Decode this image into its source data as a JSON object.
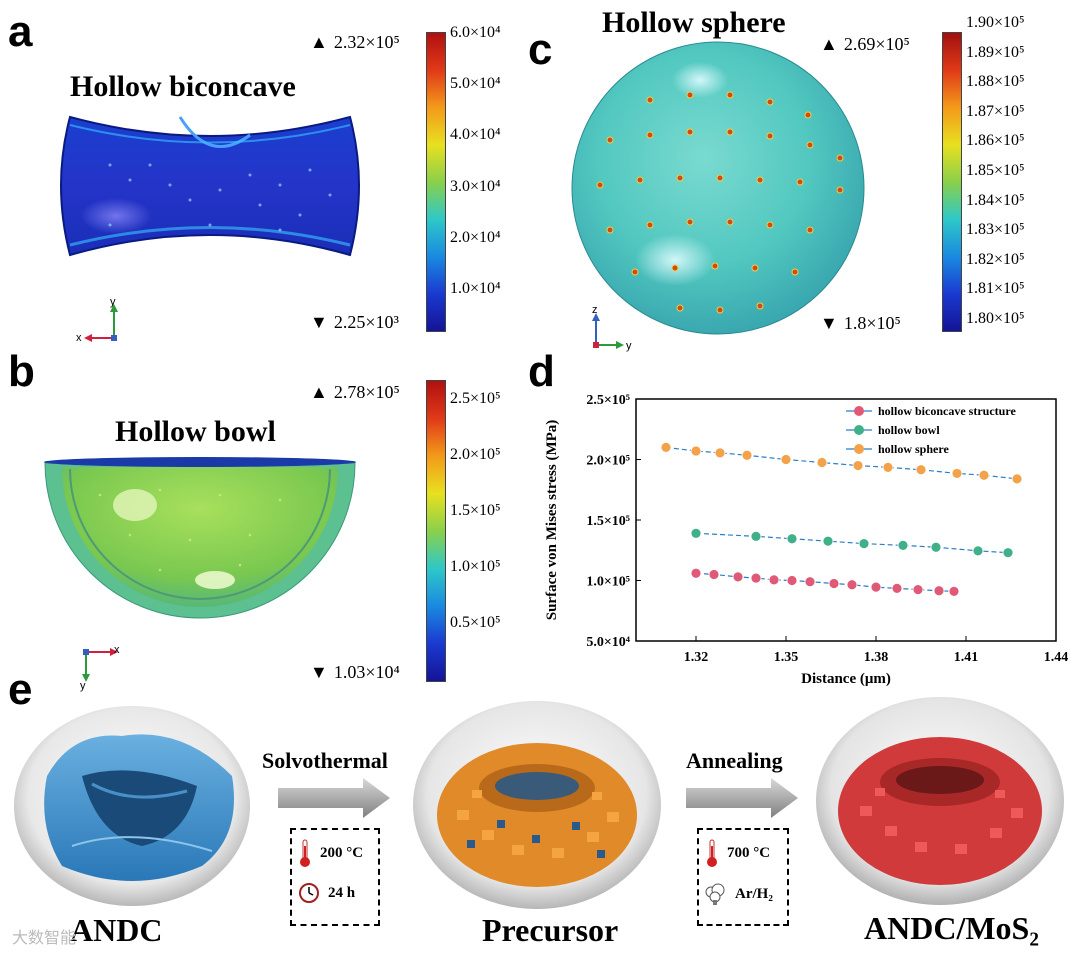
{
  "panels": {
    "a": {
      "letter": "a",
      "title": "Hollow biconcave",
      "max_label": "2.32×10⁵",
      "min_label": "2.25×10³",
      "colorbar_ticks": [
        "6.0×10⁴",
        "5.0×10⁴",
        "4.0×10⁴",
        "3.0×10⁴",
        "2.0×10⁴",
        "1.0×10⁴"
      ],
      "axis_x": "x",
      "axis_y": "y"
    },
    "b": {
      "letter": "b",
      "title": "Hollow bowl",
      "max_label": "2.78×10⁵",
      "min_label": "1.03×10⁴",
      "colorbar_ticks": [
        "2.5×10⁵",
        "2.0×10⁵",
        "1.5×10⁵",
        "1.0×10⁵",
        "0.5×10⁵"
      ],
      "axis_x": "x",
      "axis_y": "y"
    },
    "c": {
      "letter": "c",
      "title": "Hollow sphere",
      "max_label": "2.69×10⁵",
      "min_label": "1.8×10⁵",
      "colorbar_ticks": [
        "1.90×10⁵",
        "1.89×10⁵",
        "1.88×10⁵",
        "1.87×10⁵",
        "1.86×10⁵",
        "1.85×10⁵",
        "1.84×10⁵",
        "1.83×10⁵",
        "1.82×10⁵",
        "1.81×10⁵",
        "1.80×10⁵"
      ],
      "axis_z": "z",
      "axis_y": "y"
    },
    "d": {
      "letter": "d"
    },
    "e": {
      "letter": "e",
      "step1": "Solvothermal",
      "step2": "Annealing",
      "cond1_temp": "200 °C",
      "cond1_time": "24 h",
      "cond2_temp": "700 °C",
      "cond2_gas": "Ar/H₂",
      "product1": "ANDC",
      "product2": "Precursor",
      "product3": "ANDC/MoS₂",
      "watermark": "大数智能"
    }
  },
  "chart_data": {
    "type": "scatter",
    "xlabel": "Distance (μm)",
    "ylabel": "Surface von Mises stress (MPa)",
    "xlim": [
      1.3,
      1.44
    ],
    "ylim": [
      50000,
      250000
    ],
    "x_ticks": [
      "1.32",
      "1.35",
      "1.38",
      "1.41",
      "1.44"
    ],
    "x_tick_values": [
      1.32,
      1.35,
      1.38,
      1.41,
      1.44
    ],
    "y_ticks": [
      "5.0×10⁴",
      "1.0×10⁵",
      "1.5×10⁵",
      "2.0×10⁵",
      "2.5×10⁵"
    ],
    "y_tick_values": [
      50000,
      100000,
      150000,
      200000,
      250000
    ],
    "legend_position": "top-right",
    "series": [
      {
        "name": "hollow biconcave structure",
        "color": "#e05a78",
        "x": [
          1.32,
          1.326,
          1.334,
          1.34,
          1.346,
          1.352,
          1.358,
          1.366,
          1.372,
          1.38,
          1.387,
          1.394,
          1.401,
          1.406
        ],
        "y": [
          106000,
          105000,
          103000,
          102000,
          100500,
          100000,
          99000,
          97500,
          96500,
          94500,
          93500,
          92500,
          91500,
          91000
        ]
      },
      {
        "name": "hollow bowl",
        "color": "#3fb08a",
        "x": [
          1.32,
          1.34,
          1.352,
          1.364,
          1.376,
          1.389,
          1.4,
          1.414,
          1.424
        ],
        "y": [
          139000,
          136500,
          134500,
          132500,
          130500,
          129000,
          127500,
          124500,
          123000
        ]
      },
      {
        "name": "hollow sphere",
        "color": "#f3a24a",
        "x": [
          1.31,
          1.32,
          1.328,
          1.337,
          1.35,
          1.362,
          1.374,
          1.384,
          1.395,
          1.407,
          1.416,
          1.427
        ],
        "y": [
          210000,
          207000,
          205500,
          203500,
          200000,
          197500,
          195000,
          193500,
          191500,
          188500,
          187000,
          184000
        ]
      }
    ]
  }
}
